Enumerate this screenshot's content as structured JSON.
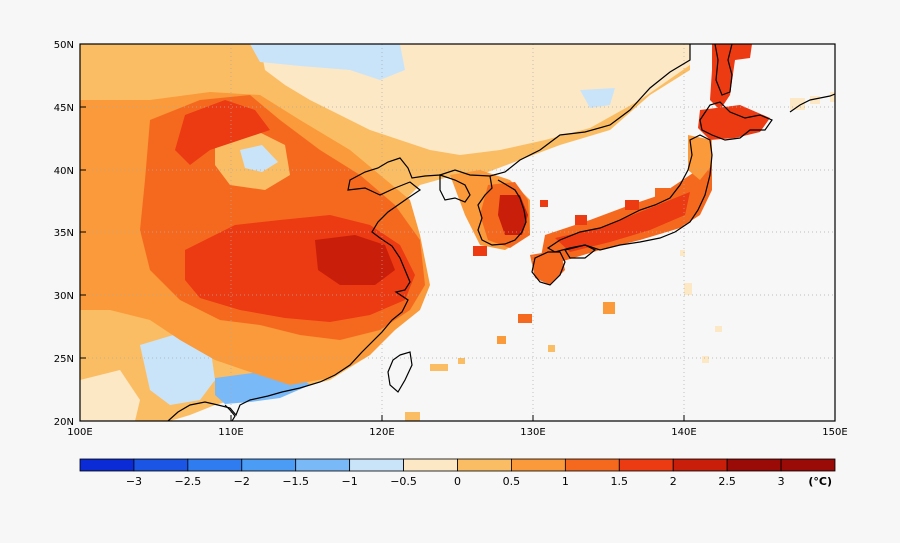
{
  "map": {
    "lat_ticks": [
      "50N",
      "45N",
      "40N",
      "35N",
      "30N",
      "25N",
      "20N"
    ],
    "lon_ticks": [
      "100E",
      "110E",
      "120E",
      "130E",
      "140E",
      "150E"
    ]
  },
  "colorbar": {
    "labels": [
      "−3",
      "−2.5",
      "−2",
      "−1.5",
      "−1",
      "−0.5",
      "0",
      "0.5",
      "1",
      "1.5",
      "2",
      "2.5",
      "3"
    ],
    "colors": [
      "#0a2bd6",
      "#1a55e6",
      "#2f7cf0",
      "#4a9cf5",
      "#7ab9f7",
      "#c9e4f9",
      "#fde8c6",
      "#fbbd64",
      "#fa9a3a",
      "#f5691f",
      "#ec3a12",
      "#c81e0a",
      "#9a0b08"
    ],
    "unit": "(°C)"
  }
}
